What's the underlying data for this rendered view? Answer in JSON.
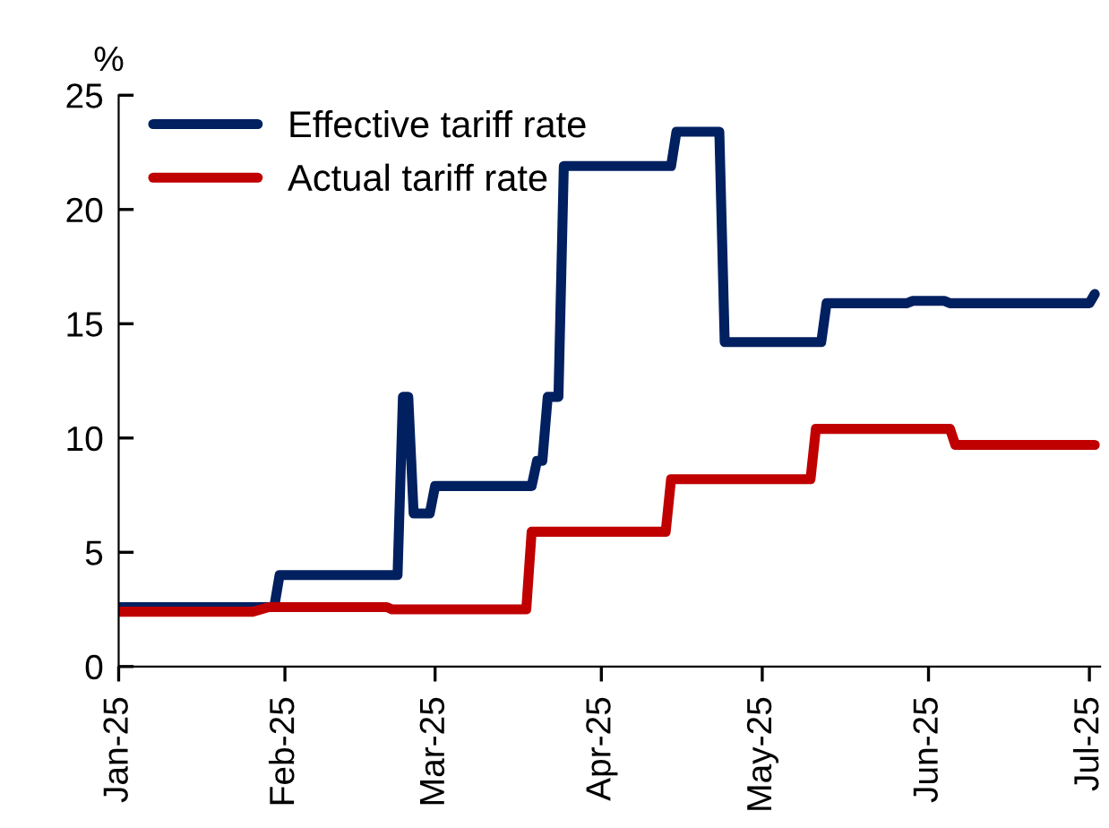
{
  "chart_data": {
    "type": "line",
    "ylabel": "%",
    "series": [
      {
        "name": "Effective tariff rate",
        "color": "#002060",
        "x": [
          "2025-01-01",
          "2025-01-30",
          "2025-01-31",
          "2025-02-22",
          "2025-02-23",
          "2025-02-24",
          "2025-02-25",
          "2025-02-28",
          "2025-03-01",
          "2025-03-19",
          "2025-03-20",
          "2025-03-21",
          "2025-03-22",
          "2025-03-24",
          "2025-03-25",
          "2025-04-14",
          "2025-04-15",
          "2025-04-23",
          "2025-04-24",
          "2025-05-12",
          "2025-05-13",
          "2025-05-28",
          "2025-05-29",
          "2025-06-04",
          "2025-06-05",
          "2025-07-01",
          "2025-07-02"
        ],
        "values": [
          2.6,
          2.6,
          4.0,
          4.0,
          11.8,
          11.8,
          6.7,
          6.7,
          7.9,
          7.9,
          9.0,
          9.0,
          11.8,
          11.8,
          21.9,
          21.9,
          23.4,
          23.4,
          14.2,
          14.2,
          15.9,
          15.9,
          16.0,
          16.0,
          15.9,
          15.9,
          16.3
        ]
      },
      {
        "name": "Actual tariff rate",
        "color": "#c00000",
        "x": [
          "2025-01-01",
          "2025-01-26",
          "2025-01-29",
          "2025-02-20",
          "2025-02-21",
          "2025-03-18",
          "2025-03-19",
          "2025-04-13",
          "2025-04-14",
          "2025-05-10",
          "2025-05-11",
          "2025-06-05",
          "2025-06-06",
          "2025-07-02"
        ],
        "values": [
          2.4,
          2.4,
          2.6,
          2.6,
          2.5,
          2.5,
          5.9,
          5.9,
          8.2,
          8.2,
          10.4,
          10.4,
          9.7,
          9.7
        ]
      }
    ],
    "xlim": [
      "2025-01-01",
      "2025-07-03"
    ],
    "xticks": [
      {
        "value": "2025-01-01",
        "label": "Jan-25"
      },
      {
        "value": "2025-02-01",
        "label": "Feb-25"
      },
      {
        "value": "2025-03-01",
        "label": "Mar-25"
      },
      {
        "value": "2025-04-01",
        "label": "Apr-25"
      },
      {
        "value": "2025-05-01",
        "label": "May-25"
      },
      {
        "value": "2025-06-01",
        "label": "Jun-25"
      },
      {
        "value": "2025-07-01",
        "label": "Jul-25"
      }
    ],
    "ylim": [
      0,
      25
    ],
    "yticks": [
      0,
      5,
      10,
      15,
      20,
      25
    ],
    "grid": false,
    "legend": "top left",
    "marker": "none",
    "line_style": "solid"
  }
}
